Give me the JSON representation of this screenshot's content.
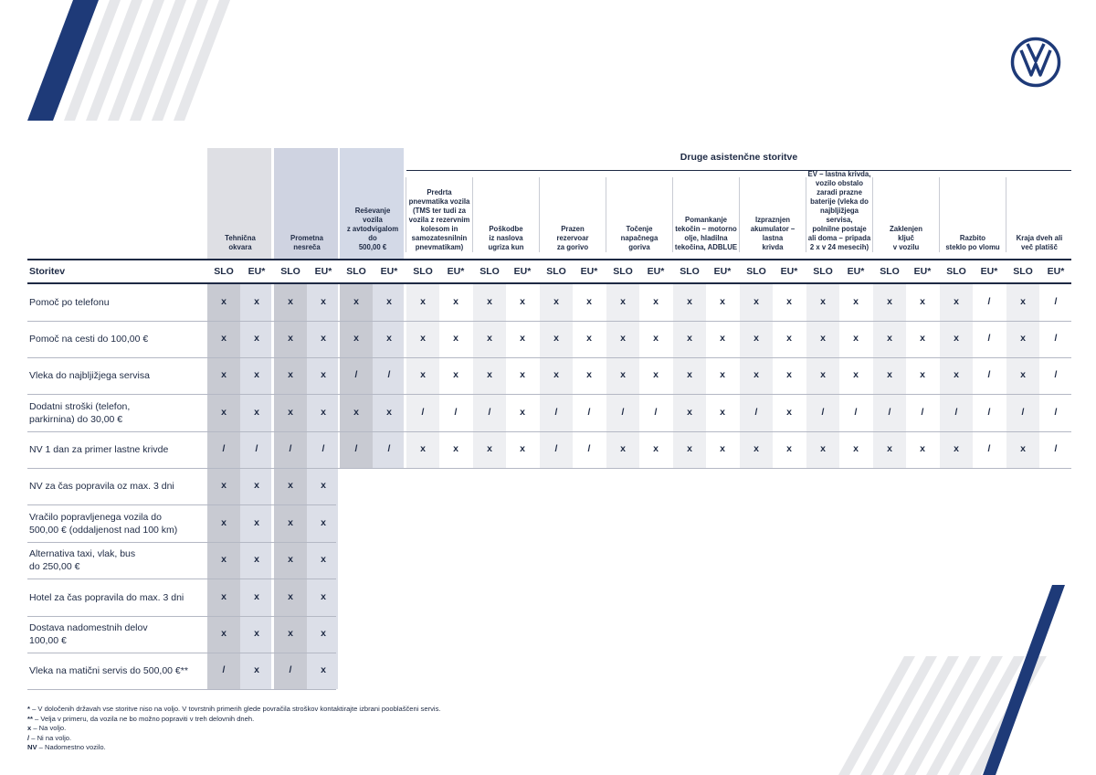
{
  "brand": {
    "logo": "volkswagen-logo",
    "accent": "#1e3a78"
  },
  "group_title": "Druge asistenčne storitve",
  "columns": [
    {
      "label": "Tehnična\nokvara",
      "fill": "#dedfe4"
    },
    {
      "label": "Prometna\nnesreča",
      "fill": "#cfd3e1"
    },
    {
      "label": "Reševanje\nvozila\nz avtodvigalom\ndo\n500,00 €",
      "fill": "#d3d9e7"
    },
    {
      "label": "Predrta\npnevmatika vozila\n(TMS ter tudi za\nvozila z rezervnim\nkolesom in\nsamozatesnilnin\npnevmatikam)"
    },
    {
      "label": "Poškodbe\niz naslova\nugriza kun"
    },
    {
      "label": "Prazen\nrezervoar\nza gorivo"
    },
    {
      "label": "Točenje\nnapačnega\ngoriva"
    },
    {
      "label": "Pomankanje\ntekočin – motorno\nolje, hladilna\ntekočina, ADBLUE"
    },
    {
      "label": "Izpraznjen\nakumulator –\nlastna\nkrivda"
    },
    {
      "label": "EV – lastna krivda,\nvozilo obstalo\nzaradi prazne\nbaterije (vleka do\nnajbljižjega servisa,\npolnilne postaje\nali doma – pripada\n2 x v 24 mesecih)"
    },
    {
      "label": "Zaklenjen\nključ\nv vozilu"
    },
    {
      "label": "Razbito\nsteklo po vlomu"
    },
    {
      "label": "Kraja dveh ali\nveč platišč"
    }
  ],
  "subcols": [
    "SLO",
    "EU*"
  ],
  "storitev_label": "Storitev",
  "rows": [
    {
      "label": "Pomoč po telefonu",
      "values": [
        "x",
        "x",
        "x",
        "x",
        "x",
        "x",
        "x",
        "x",
        "x",
        "x",
        "x",
        "x",
        "x",
        "x",
        "x",
        "x",
        "x",
        "x",
        "x",
        "x",
        "x",
        "x",
        "x",
        "/",
        "x",
        "/"
      ]
    },
    {
      "label": "Pomoč na cesti do 100,00 €",
      "values": [
        "x",
        "x",
        "x",
        "x",
        "x",
        "x",
        "x",
        "x",
        "x",
        "x",
        "x",
        "x",
        "x",
        "x",
        "x",
        "x",
        "x",
        "x",
        "x",
        "x",
        "x",
        "x",
        "x",
        "/",
        "x",
        "/"
      ]
    },
    {
      "label": "Vleka do najbljižjega servisa",
      "values": [
        "x",
        "x",
        "x",
        "x",
        "/",
        "/",
        "x",
        "x",
        "x",
        "x",
        "x",
        "x",
        "x",
        "x",
        "x",
        "x",
        "x",
        "x",
        "x",
        "x",
        "x",
        "x",
        "x",
        "/",
        "x",
        "/"
      ]
    },
    {
      "label": "Dodatni stroški (telefon,\nparkirnina) do 30,00 €",
      "values": [
        "x",
        "x",
        "x",
        "x",
        "x",
        "x",
        "/",
        "/",
        "/",
        "x",
        "/",
        "/",
        "/",
        "/",
        "x",
        "x",
        "/",
        "x",
        "/",
        "/",
        "/",
        "/",
        "/",
        "/",
        "/",
        "/"
      ]
    },
    {
      "label": "NV 1 dan za primer lastne krivde",
      "values": [
        "/",
        "/",
        "/",
        "/",
        "/",
        "/",
        "x",
        "x",
        "x",
        "x",
        "/",
        "/",
        "x",
        "x",
        "x",
        "x",
        "x",
        "x",
        "x",
        "x",
        "x",
        "x",
        "x",
        "/",
        "x",
        "/"
      ]
    },
    {
      "label": "NV za čas popravila oz max. 3 dni",
      "values": [
        "x",
        "x",
        "x",
        "x"
      ]
    },
    {
      "label": "Vračilo popravljenega vozila do\n500,00 € (oddaljenost nad 100 km)",
      "values": [
        "x",
        "x",
        "x",
        "x"
      ]
    },
    {
      "label": "Alternativa taxi, vlak, bus\ndo 250,00 €",
      "values": [
        "x",
        "x",
        "x",
        "x"
      ]
    },
    {
      "label": "Hotel za čas popravila do max. 3 dni",
      "values": [
        "x",
        "x",
        "x",
        "x"
      ]
    },
    {
      "label": "Dostava nadomestnih delov\n100,00 €",
      "values": [
        "x",
        "x",
        "x",
        "x"
      ]
    },
    {
      "label": "Vleka na matični servis do 500,00 €**",
      "values": [
        "/",
        "x",
        "/",
        "x"
      ]
    }
  ],
  "footnotes": [
    {
      "key": "*",
      "text": " – V določenih državah vse storitve niso na voljo. V tovrstnih primerih glede povračila stroškov kontaktirajte izbrani pooblaščeni servis."
    },
    {
      "key": "**",
      "text": " – Velja v primeru, da vozila ne bo možno popraviti v treh delovnih dneh."
    },
    {
      "key": "x",
      "text": " – Na voljo."
    },
    {
      "key": "/",
      "text": " – Ni na voljo."
    },
    {
      "key": "NV",
      "text": " – Nadomestno vozilo."
    }
  ]
}
